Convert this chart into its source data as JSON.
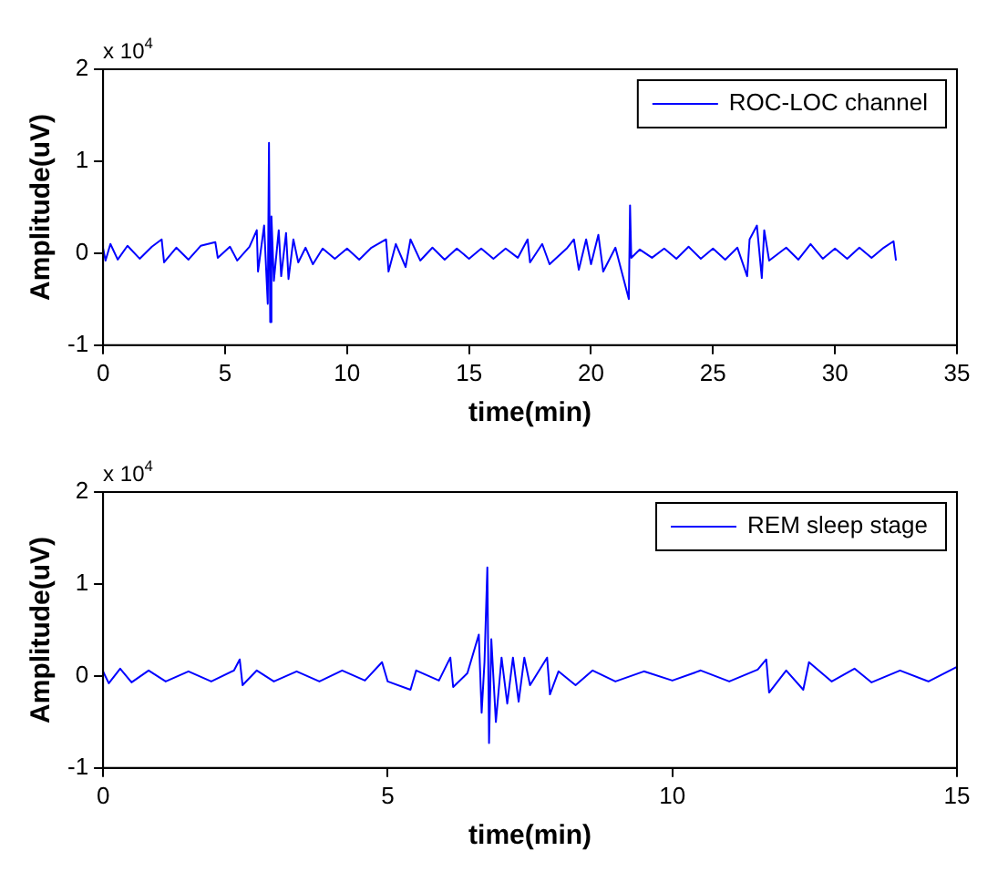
{
  "chart_data": [
    {
      "type": "line",
      "xlabel": "time(min)",
      "ylabel": "Amplitude(uV)",
      "annotations": [
        "x 10$^{4}$"
      ],
      "xlim": [
        0,
        35
      ],
      "xticks": [
        0,
        5,
        10,
        15,
        20,
        25,
        30,
        35
      ],
      "ylim": [
        -1,
        2
      ],
      "yticks": [
        -1,
        0,
        1,
        2
      ],
      "grid": false,
      "legend": "top right",
      "marker": "none",
      "line_style": "solid",
      "series": [
        {
          "name": "ROC-LOC channel",
          "color": "#0000ff",
          "x": [
            0,
            0.1,
            0.3,
            0.6,
            1,
            1.5,
            2,
            2.4,
            2.5,
            3,
            3.5,
            4,
            4.6,
            4.7,
            5.2,
            5.5,
            6,
            6.3,
            6.35,
            6.6,
            6.75,
            6.8,
            6.85,
            6.9,
            7,
            7.2,
            7.3,
            7.5,
            7.6,
            7.8,
            8,
            8.3,
            8.6,
            9,
            9.5,
            10,
            10.5,
            11,
            11.6,
            11.7,
            12,
            12.4,
            12.6,
            13,
            13.5,
            14,
            14.5,
            15,
            15.5,
            16,
            16.5,
            17,
            17.4,
            17.5,
            18,
            18.3,
            19,
            19.3,
            19.5,
            19.8,
            20,
            20.3,
            20.5,
            21,
            21.55,
            21.6,
            21.65,
            22,
            22.5,
            23,
            23.5,
            24,
            24.5,
            25,
            25.5,
            26,
            26.4,
            26.5,
            26.8,
            27,
            27.1,
            27.3,
            28,
            28.5,
            29,
            29.5,
            30,
            30.5,
            31,
            31.5,
            32,
            32.4,
            32.5
          ],
          "values": [
            0.05,
            -0.08,
            0.1,
            -0.07,
            0.08,
            -0.06,
            0.07,
            0.15,
            -0.1,
            0.06,
            -0.07,
            0.08,
            0.12,
            -0.05,
            0.07,
            -0.08,
            0.07,
            0.25,
            -0.2,
            0.3,
            -0.55,
            1.2,
            -0.75,
            0.4,
            -0.3,
            0.25,
            -0.25,
            0.22,
            -0.28,
            0.15,
            -0.1,
            0.06,
            -0.12,
            0.05,
            -0.06,
            0.05,
            -0.07,
            0.06,
            0.15,
            -0.2,
            0.1,
            -0.15,
            0.15,
            -0.08,
            0.06,
            -0.07,
            0.05,
            -0.06,
            0.05,
            -0.06,
            0.05,
            -0.05,
            0.15,
            -0.1,
            0.1,
            -0.12,
            0.05,
            0.15,
            -0.18,
            0.15,
            -0.12,
            0.2,
            -0.2,
            0.06,
            -0.5,
            0.52,
            -0.05,
            0.04,
            -0.05,
            0.05,
            -0.06,
            0.07,
            -0.06,
            0.05,
            -0.07,
            0.06,
            -0.25,
            0.15,
            0.3,
            -0.27,
            0.25,
            -0.08,
            0.06,
            -0.07,
            0.1,
            -0.06,
            0.05,
            -0.06,
            0.06,
            -0.05,
            0.06,
            0.13,
            -0.08
          ]
        }
      ]
    },
    {
      "type": "line",
      "xlabel": "time(min)",
      "ylabel": "Amplitude(uV)",
      "annotations": [
        "x 10$^{4}$"
      ],
      "xlim": [
        0,
        15
      ],
      "xticks": [
        0,
        5,
        10,
        15
      ],
      "ylim": [
        -1,
        2
      ],
      "yticks": [
        -1,
        0,
        1,
        2
      ],
      "grid": false,
      "legend": "top right",
      "marker": "none",
      "line_style": "solid",
      "series": [
        {
          "name": "REM sleep stage",
          "color": "#0000ff",
          "x": [
            0,
            0.1,
            0.3,
            0.5,
            0.8,
            1.1,
            1.5,
            1.9,
            2.3,
            2.4,
            2.45,
            2.7,
            3,
            3.4,
            3.8,
            4.2,
            4.6,
            4.9,
            5,
            5.4,
            5.5,
            5.9,
            6.1,
            6.15,
            6.4,
            6.6,
            6.65,
            6.7,
            6.75,
            6.78,
            6.82,
            6.9,
            7,
            7.1,
            7.2,
            7.3,
            7.4,
            7.5,
            7.8,
            7.85,
            8,
            8.3,
            8.6,
            9,
            9.5,
            10,
            10.5,
            11,
            11.5,
            11.65,
            11.7,
            12,
            12.3,
            12.4,
            12.8,
            13.2,
            13.5,
            14,
            14.5,
            15
          ],
          "values": [
            0.05,
            -0.08,
            0.08,
            -0.07,
            0.06,
            -0.06,
            0.05,
            -0.06,
            0.06,
            0.18,
            -0.1,
            0.06,
            -0.06,
            0.05,
            -0.06,
            0.06,
            -0.05,
            0.15,
            -0.06,
            -0.15,
            0.06,
            -0.05,
            0.2,
            -0.12,
            0.03,
            0.45,
            -0.4,
            0.15,
            1.18,
            -0.73,
            0.4,
            -0.5,
            0.2,
            -0.3,
            0.2,
            -0.28,
            0.2,
            -0.1,
            0.2,
            -0.2,
            0.05,
            -0.1,
            0.06,
            -0.06,
            0.05,
            -0.05,
            0.06,
            -0.06,
            0.07,
            0.18,
            -0.18,
            0.06,
            -0.15,
            0.15,
            -0.06,
            0.08,
            -0.07,
            0.06,
            -0.06,
            0.1
          ]
        }
      ]
    }
  ]
}
